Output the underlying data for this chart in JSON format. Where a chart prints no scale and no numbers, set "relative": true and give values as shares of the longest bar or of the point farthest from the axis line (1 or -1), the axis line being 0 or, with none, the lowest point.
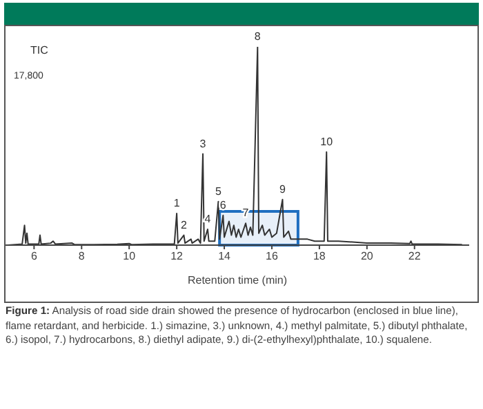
{
  "chart_data": {
    "type": "line",
    "title": "Figure 1:",
    "subtitle": "Analysis of road side drain showed the presence of hydrocarbon (enclosed in blue line), flame retardant, and herbicide. 1.) simazine, 3.) unknown, 4.) methyl palmitate, 5.) dibutyl phthalate, 6.) isopol, 7.) hydrocarbons, 8.) diethyl adipate, 9.) di-(2-ethylhexyl)phthalate, 10.) squalene.",
    "xlabel": "Retention time (min)",
    "ylabel": "TIC",
    "relative": true,
    "xlim": [
      4.8,
      24.3
    ],
    "xticks": [
      6,
      8,
      10,
      12,
      14,
      16,
      18,
      20,
      22
    ],
    "grid": false,
    "legend": false,
    "marker": "none",
    "line_style": "solid",
    "series": [
      {
        "color": "#333333",
        "x": [
          4.9,
          5.5,
          5.6,
          5.65,
          5.7,
          5.75,
          6.2,
          6.25,
          6.3,
          6.7,
          6.8,
          6.9,
          7.6,
          7.7,
          8.5,
          9.5,
          10,
          10.1,
          11,
          11.9,
          12.0,
          12.05,
          12.3,
          12.35,
          12.6,
          12.65,
          12.9,
          13.0,
          13.1,
          13.15,
          13.3,
          13.35,
          13.6,
          13.75,
          13.8,
          13.95,
          14.0,
          14.2,
          14.3,
          14.4,
          14.5,
          14.6,
          14.7,
          14.9,
          15.0,
          15.1,
          15.2,
          15.4,
          15.45,
          15.6,
          15.7,
          15.9,
          16.0,
          16.2,
          16.45,
          16.5,
          16.7,
          16.8,
          17.1,
          17.5,
          17.8,
          18.2,
          18.3,
          18.35,
          18.8,
          19.5,
          20.0,
          21.0,
          21.8,
          21.85,
          21.9,
          23,
          24
        ],
        "values": [
          0,
          0.005,
          0.1,
          0.01,
          0.06,
          0.005,
          0.005,
          0.05,
          0.005,
          0.01,
          0.02,
          0.005,
          0.01,
          0.003,
          0.003,
          0.004,
          0.008,
          0.003,
          0.005,
          0.005,
          0.16,
          0.01,
          0.05,
          0.01,
          0.03,
          0.01,
          0.03,
          0.01,
          0.46,
          0.02,
          0.08,
          0.02,
          0.02,
          0.22,
          0.03,
          0.15,
          0.04,
          0.12,
          0.05,
          0.1,
          0.04,
          0.08,
          0.04,
          0.11,
          0.05,
          0.09,
          0.05,
          1,
          0.06,
          0.1,
          0.05,
          0.08,
          0.04,
          0.06,
          0.23,
          0.04,
          0.07,
          0.03,
          0.03,
          0.03,
          0.02,
          0.02,
          0.47,
          0.02,
          0.02,
          0.015,
          0.01,
          0.01,
          0.008,
          0.02,
          0.005,
          0.005,
          0.003
        ]
      }
    ],
    "bands": [
      {
        "axis": "x",
        "from": 13.8,
        "to": 17.1,
        "color": "#1f6fc0"
      }
    ],
    "annotations": [
      "17,800",
      {
        "text": "1",
        "x": 12.0,
        "y": 0.16
      },
      {
        "text": "2",
        "x": 12.3,
        "y": 0.05
      },
      {
        "text": "3",
        "x": 13.1,
        "y": 0.46
      },
      {
        "text": "4",
        "x": 13.3,
        "y": 0.08
      },
      {
        "text": "5",
        "x": 13.75,
        "y": 0.22
      },
      {
        "text": "6",
        "x": 13.95,
        "y": 0.15
      },
      {
        "text": "7",
        "x": 14.9,
        "y": 0.11
      },
      {
        "text": "8",
        "x": 15.4,
        "y": 1
      },
      {
        "text": "9",
        "x": 16.45,
        "y": 0.23
      },
      {
        "text": "10",
        "x": 18.3,
        "y": 0.47
      }
    ]
  }
}
